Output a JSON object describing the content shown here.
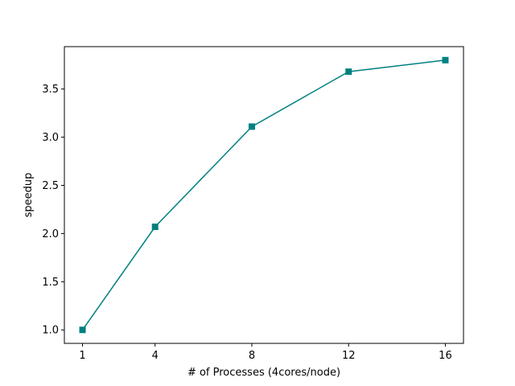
{
  "chart_data": {
    "type": "line",
    "title": "",
    "xlabel": "# of Processes (4cores/node)",
    "ylabel": "speedup",
    "x": [
      1,
      4,
      8,
      12,
      16
    ],
    "x_ticks": [
      1,
      4,
      8,
      12,
      16
    ],
    "x_tick_labels": [
      "1",
      "4",
      "8",
      "12",
      "16"
    ],
    "y_ticks": [
      1.0,
      1.5,
      2.0,
      2.5,
      3.0,
      3.5
    ],
    "y_tick_labels": [
      "1.0",
      "1.5",
      "2.0",
      "2.5",
      "3.0",
      "3.5"
    ],
    "xlim": [
      0.25,
      16.75
    ],
    "ylim": [
      0.86,
      3.94
    ],
    "grid": false,
    "legend": "none",
    "series": [
      {
        "values": [
          1.0,
          2.07,
          3.11,
          3.68,
          3.8
        ],
        "color": "#008080",
        "marker": "square"
      }
    ]
  }
}
